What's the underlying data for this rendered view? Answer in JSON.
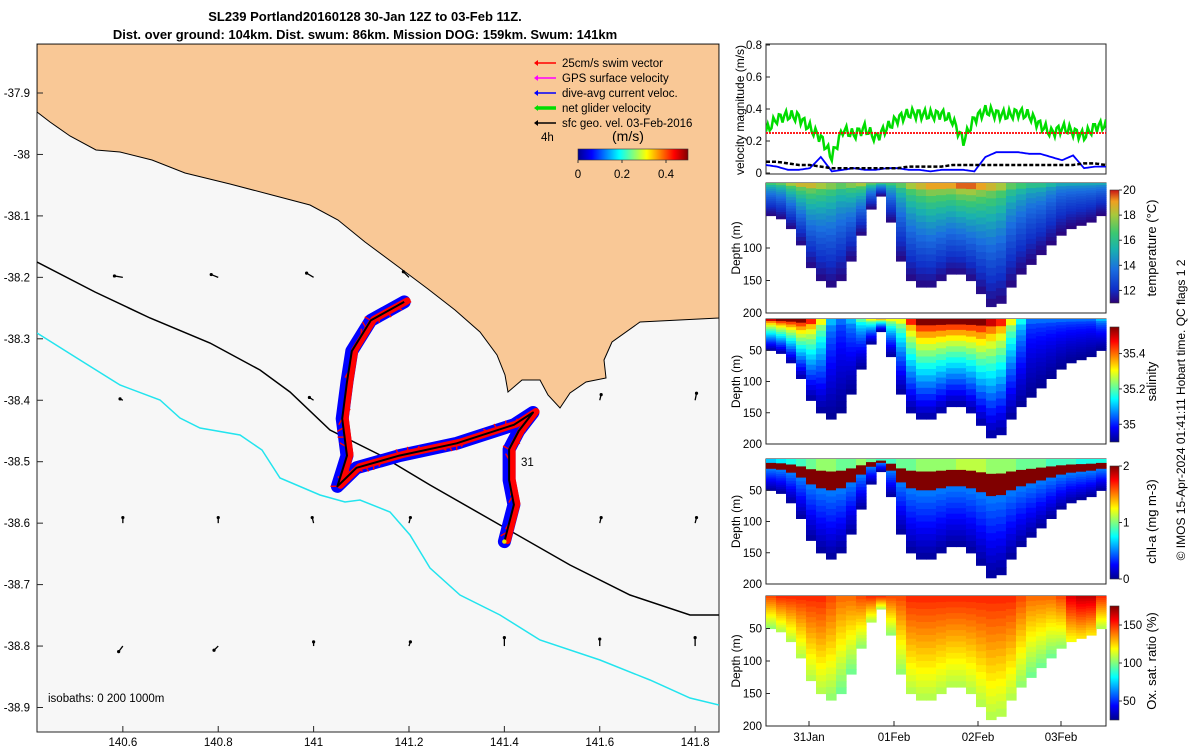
{
  "title": {
    "line1": "SL239 Portland20160128 30-Jan 12Z to 03-Feb 11Z.",
    "line2": "Dist. over ground: 104km. Dist. swum: 86km. Mission DOG: 159km. Swum: 141km"
  },
  "colors": {
    "land": "#f9c896",
    "isobath_0_200": "#000000",
    "isobath_1000": "#22e4ee",
    "swim_vector": "#ff0000",
    "gps_velocity": "#ff00ff",
    "dive_avg_current": "#0000ff",
    "net_glider_velocity": "#00dd00",
    "sfc_geo_vel": "#000000"
  },
  "chart_data": [
    {
      "type": "map",
      "xticks": [
        "140.6",
        "140.8",
        "141",
        "141.2",
        "141.4",
        "141.6",
        "141.8"
      ],
      "yticks": [
        "-37.9",
        "-38",
        "-38.1",
        "-38.2",
        "-38.3",
        "-38.4",
        "-38.5",
        "-38.6",
        "-38.7",
        "-38.8",
        "-38.9"
      ],
      "xlim": [
        140.42,
        141.85
      ],
      "ylim": [
        -38.95,
        -37.8
      ],
      "legend": [
        {
          "label": "25cm/s swim vector",
          "color": "#ff0000"
        },
        {
          "label": "GPS surface velocity",
          "color": "#ff00ff"
        },
        {
          "label": "dive-avg current veloc.",
          "color": "#0000ff"
        },
        {
          "label": "net glider velocity",
          "color": "#00dd00"
        },
        {
          "label": "sfc geo. vel. 03-Feb-2016",
          "color": "#000000"
        }
      ],
      "colorbar": {
        "label": "(m/s)",
        "note": "4h",
        "ticks": [
          "0",
          "0.2",
          "0.4"
        ],
        "range": [
          0,
          0.5
        ]
      },
      "track_label": "31",
      "isobaths_text": "isobaths: 0   200  1000m",
      "track": [
        [
          141.19,
          -38.24
        ],
        [
          141.12,
          -38.27
        ],
        [
          141.08,
          -38.32
        ],
        [
          141.07,
          -38.37
        ],
        [
          141.06,
          -38.43
        ],
        [
          141.07,
          -38.49
        ],
        [
          141.05,
          -38.54
        ],
        [
          141.09,
          -38.51
        ],
        [
          141.18,
          -38.49
        ],
        [
          141.3,
          -38.47
        ],
        [
          141.42,
          -38.44
        ],
        [
          141.46,
          -38.42
        ],
        [
          141.43,
          -38.45
        ],
        [
          141.41,
          -38.48
        ],
        [
          141.41,
          -38.53
        ],
        [
          141.42,
          -38.57
        ],
        [
          141.41,
          -38.6
        ],
        [
          141.4,
          -38.63
        ]
      ],
      "geo_vectors": [
        {
          "lon": 140.6,
          "lat": -38.2,
          "u": -0.6,
          "v": 0.1
        },
        {
          "lon": 140.8,
          "lat": -38.2,
          "u": -0.5,
          "v": 0.2
        },
        {
          "lon": 141.0,
          "lat": -38.2,
          "u": -0.5,
          "v": 0.3
        },
        {
          "lon": 141.2,
          "lat": -38.2,
          "u": -0.4,
          "v": 0.4
        },
        {
          "lon": 140.6,
          "lat": -38.4,
          "u": -0.2,
          "v": 0.1
        },
        {
          "lon": 141.0,
          "lat": -38.4,
          "u": -0.3,
          "v": 0.2
        },
        {
          "lon": 141.6,
          "lat": -38.4,
          "u": 0.1,
          "v": 0.4
        },
        {
          "lon": 141.8,
          "lat": -38.4,
          "u": 0.1,
          "v": 0.5
        },
        {
          "lon": 140.6,
          "lat": -38.6,
          "u": 0.0,
          "v": 0.4
        },
        {
          "lon": 140.8,
          "lat": -38.6,
          "u": 0.0,
          "v": 0.4
        },
        {
          "lon": 141.0,
          "lat": -38.6,
          "u": -0.1,
          "v": 0.4
        },
        {
          "lon": 141.2,
          "lat": -38.6,
          "u": 0.1,
          "v": 0.4
        },
        {
          "lon": 141.6,
          "lat": -38.6,
          "u": 0.1,
          "v": 0.4
        },
        {
          "lon": 141.8,
          "lat": -38.6,
          "u": 0.1,
          "v": 0.4
        },
        {
          "lon": 140.6,
          "lat": -38.8,
          "u": -0.3,
          "v": -0.4
        },
        {
          "lon": 140.8,
          "lat": -38.8,
          "u": -0.3,
          "v": -0.3
        },
        {
          "lon": 141.0,
          "lat": -38.8,
          "u": 0.0,
          "v": 0.3
        },
        {
          "lon": 141.2,
          "lat": -38.8,
          "u": 0.1,
          "v": 0.3
        },
        {
          "lon": 141.4,
          "lat": -38.8,
          "u": 0.0,
          "v": 0.6
        },
        {
          "lon": 141.6,
          "lat": -38.8,
          "u": 0.0,
          "v": 0.5
        },
        {
          "lon": 141.8,
          "lat": -38.8,
          "u": 0.0,
          "v": 0.6
        }
      ]
    },
    {
      "type": "line",
      "ylabel": "velocity magnitude (m/s)",
      "yticks": [
        "0",
        "0.2",
        "0.4",
        "0.6",
        "0.8"
      ],
      "ylim": [
        0,
        0.8
      ],
      "series": [
        {
          "color": "#00dd00",
          "values": [
            0.26,
            0.34,
            0.36,
            0.35,
            0.28,
            0.22,
            0.1,
            0.27,
            0.24,
            0.28,
            0.22,
            0.28,
            0.34,
            0.37,
            0.37,
            0.36,
            0.37,
            0.33,
            0.2,
            0.34,
            0.39,
            0.37,
            0.36,
            0.38,
            0.36,
            0.3,
            0.25,
            0.28,
            0.26,
            0.23,
            0.29,
            0.3
          ]
        },
        {
          "color": "#ff0000",
          "values": [
            0.25,
            0.25,
            0.25,
            0.25,
            0.25,
            0.25,
            0.25,
            0.25,
            0.25,
            0.25,
            0.25,
            0.25,
            0.25,
            0.25,
            0.25,
            0.25,
            0.25,
            0.25,
            0.25,
            0.25,
            0.25,
            0.25,
            0.25,
            0.25,
            0.25,
            0.25,
            0.25,
            0.25,
            0.25,
            0.25,
            0.25,
            0.25
          ]
        },
        {
          "color": "#0000ff",
          "values": [
            0.05,
            0.04,
            0.02,
            0.02,
            0.03,
            0.1,
            0.01,
            0.02,
            0.03,
            0.02,
            0.02,
            0.03,
            0.03,
            0.02,
            0.02,
            0.01,
            0.02,
            0.02,
            0.02,
            0.01,
            0.1,
            0.13,
            0.13,
            0.13,
            0.12,
            0.12,
            0.1,
            0.08,
            0.11,
            0.03,
            0.04,
            0.04
          ]
        },
        {
          "color": "#000000",
          "values": [
            0.07,
            0.07,
            0.06,
            0.05,
            0.05,
            0.04,
            0.03,
            0.03,
            0.03,
            0.03,
            0.03,
            0.03,
            0.03,
            0.04,
            0.04,
            0.04,
            0.04,
            0.05,
            0.05,
            0.05,
            0.05,
            0.05,
            0.05,
            0.05,
            0.05,
            0.05,
            0.05,
            0.05,
            0.05,
            0.06,
            0.06,
            0.05
          ]
        }
      ]
    },
    {
      "type": "heatmap",
      "variable": "temperature",
      "ylabel": "Depth (m)",
      "yticks": [
        "100",
        "150",
        "200"
      ],
      "ylim": [
        200,
        0
      ],
      "colorbar": {
        "label": "temperature (°C)",
        "ticks": [
          "20",
          "18",
          "16",
          "14",
          "12"
        ],
        "range": [
          11,
          20
        ]
      },
      "bottom_depth": [
        50,
        55,
        70,
        95,
        130,
        150,
        160,
        150,
        120,
        80,
        40,
        20,
        60,
        120,
        150,
        160,
        160,
        150,
        140,
        140,
        150,
        170,
        190,
        185,
        160,
        140,
        125,
        110,
        95,
        80,
        70,
        65,
        60,
        50
      ],
      "surface_value": [
        16.5,
        17,
        18,
        18.5,
        18.5,
        18,
        17.5,
        17,
        17.5,
        18,
        17,
        16.5,
        16.5,
        17,
        18,
        18.5,
        19,
        19,
        19,
        19.5,
        19.5,
        19,
        18.5,
        18,
        17,
        16.5,
        16,
        16,
        15.5,
        15,
        15,
        15,
        15,
        15
      ]
    },
    {
      "type": "heatmap",
      "variable": "salinity",
      "ylabel": "Depth (m)",
      "yticks": [
        "50",
        "100",
        "150",
        "200"
      ],
      "ylim": [
        200,
        0
      ],
      "colorbar": {
        "label": "salinity",
        "ticks": [
          "35.4",
          "35.2",
          "35"
        ],
        "range": [
          34.9,
          35.55
        ]
      },
      "bottom_depth": [
        50,
        55,
        70,
        95,
        130,
        150,
        160,
        150,
        120,
        80,
        40,
        20,
        60,
        120,
        150,
        160,
        160,
        150,
        140,
        140,
        150,
        170,
        190,
        185,
        160,
        140,
        125,
        110,
        95,
        80,
        70,
        65,
        60,
        50
      ],
      "surface_value": [
        35.5,
        35.55,
        35.55,
        35.55,
        35.45,
        35.3,
        35.1,
        35.05,
        35.1,
        35.2,
        35.3,
        35.35,
        35.3,
        35.3,
        35.45,
        35.55,
        35.55,
        35.55,
        35.55,
        35.55,
        35.55,
        35.55,
        35.5,
        35.45,
        35.3,
        35.15,
        35.05,
        35.05,
        35.05,
        35.05,
        35.05,
        35.05,
        35.05,
        35.1
      ]
    },
    {
      "type": "heatmap",
      "variable": "chl-a",
      "ylabel": "Depth (m)",
      "yticks": [
        "50",
        "100",
        "150",
        "200"
      ],
      "ylim": [
        200,
        0
      ],
      "colorbar": {
        "label": "chl-a (mg m-3)",
        "ticks": [
          "2",
          "1",
          "0"
        ],
        "range": [
          0,
          2
        ]
      },
      "bottom_depth": [
        50,
        55,
        70,
        95,
        130,
        150,
        160,
        150,
        120,
        80,
        40,
        20,
        60,
        120,
        150,
        160,
        160,
        150,
        140,
        140,
        150,
        170,
        190,
        185,
        160,
        140,
        125,
        110,
        95,
        80,
        70,
        65,
        60,
        50
      ],
      "surface_value": [
        0.8,
        0.9,
        1.0,
        1.1,
        1.2,
        1.3,
        1.3,
        1.2,
        1.2,
        1.3,
        1.2,
        1.1,
        1.1,
        1.2,
        1.2,
        1.3,
        1.3,
        1.3,
        1.3,
        1.4,
        1.4,
        1.4,
        1.3,
        1.3,
        1.3,
        1.2,
        1.2,
        1.2,
        1.1,
        1.1,
        1.1,
        1.0,
        1.0,
        1.0
      ]
    },
    {
      "type": "heatmap",
      "variable": "oxygen",
      "ylabel": "Depth (m)",
      "yticks": [
        "50",
        "100",
        "150",
        "200"
      ],
      "ylim": [
        200,
        0
      ],
      "colorbar": {
        "label": "Ox. sat. ratio (%)",
        "ticks": [
          "150",
          "100",
          "50"
        ],
        "range": [
          25,
          175
        ]
      },
      "bottom_depth": [
        50,
        55,
        70,
        95,
        130,
        150,
        160,
        150,
        120,
        80,
        40,
        20,
        60,
        120,
        150,
        160,
        160,
        150,
        140,
        140,
        150,
        170,
        190,
        185,
        160,
        140,
        125,
        110,
        95,
        80,
        70,
        65,
        60,
        50
      ],
      "surface_value": [
        145,
        150,
        150,
        150,
        150,
        150,
        145,
        140,
        140,
        145,
        150,
        150,
        145,
        145,
        150,
        150,
        150,
        150,
        150,
        150,
        150,
        150,
        150,
        150,
        150,
        145,
        140,
        140,
        140,
        145,
        160,
        165,
        165,
        150
      ]
    }
  ],
  "time_axis": {
    "ticks": [
      "31Jan",
      "01Feb",
      "02Feb",
      "03Feb"
    ]
  },
  "side_note": "© IMOS 15-Apr-2024 01:41:11 Hobart time. QC flags 1  2"
}
